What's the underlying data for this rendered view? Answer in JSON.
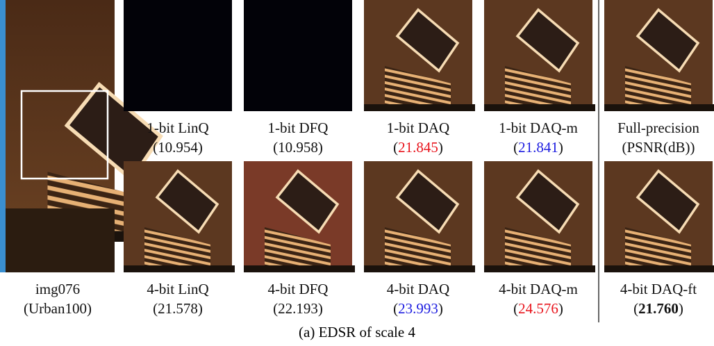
{
  "source": {
    "name": "img076",
    "dataset": "(Urban100)"
  },
  "panels": [
    [
      {
        "label": "1-bit LinQ",
        "psnr": "10.954"
      },
      {
        "label": "1-bit DFQ",
        "psnr": "10.958"
      },
      {
        "label": "1-bit DAQ",
        "psnr": "21.845",
        "color": "#e8141c"
      },
      {
        "label": "1-bit DAQ-m",
        "psnr": "21.841",
        "color": "#1c1ce0"
      },
      {
        "label": "Full-precision",
        "psnr": "PSNR(dB)"
      }
    ],
    [
      {
        "label": "4-bit LinQ",
        "psnr": "21.578"
      },
      {
        "label": "4-bit DFQ",
        "psnr": "22.193"
      },
      {
        "label": "4-bit DAQ",
        "psnr": "23.993",
        "color": "#1c1ce0"
      },
      {
        "label": "4-bit DAQ-m",
        "psnr": "24.576",
        "color": "#e8141c"
      },
      {
        "label": "4-bit DAQ-ft",
        "psnr": "21.760",
        "bold": true
      }
    ]
  ],
  "caption": "(a) EDSR of scale 4"
}
